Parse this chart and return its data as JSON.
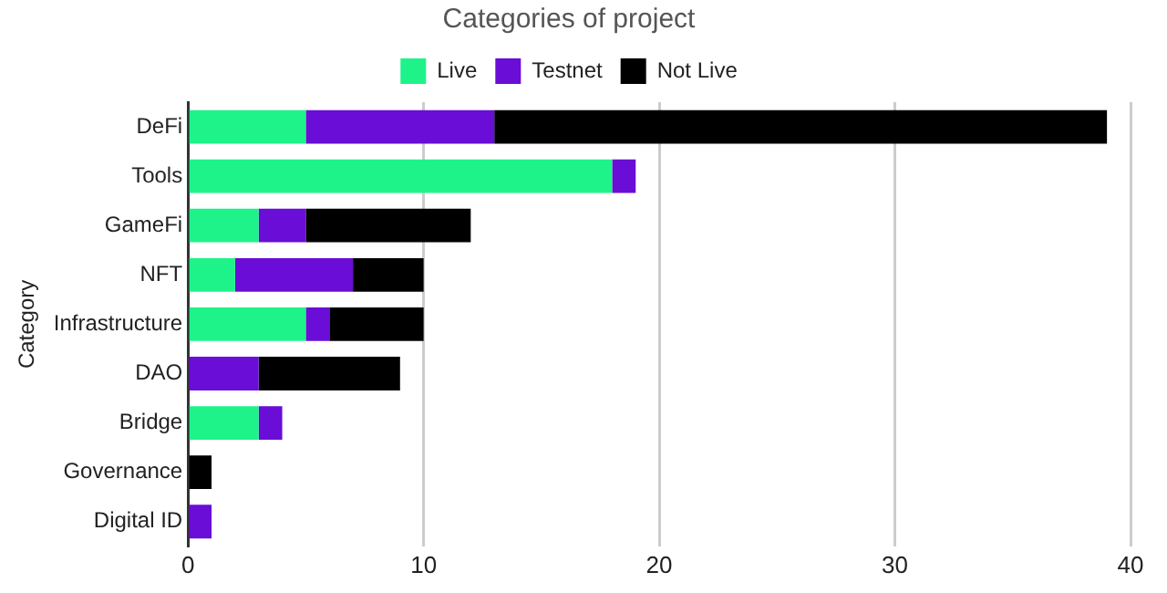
{
  "chart_data": {
    "type": "bar",
    "orientation": "horizontal",
    "stacked": true,
    "title": "Categories of project",
    "ylabel": "Category",
    "categories": [
      "DeFi",
      "Tools",
      "GameFi",
      "NFT",
      "Infrastructure",
      "DAO",
      "Bridge",
      "Governance",
      "Digital ID"
    ],
    "series": [
      {
        "name": "Live",
        "color": "#1ef38a",
        "values": [
          5,
          18,
          3,
          2,
          5,
          0,
          3,
          0,
          0
        ]
      },
      {
        "name": "Testnet",
        "color": "#6a0dd6",
        "values": [
          8,
          1,
          2,
          5,
          1,
          3,
          1,
          0,
          1
        ]
      },
      {
        "name": "Not Live",
        "color": "#000000",
        "values": [
          26,
          0,
          7,
          3,
          4,
          6,
          0,
          1,
          0
        ]
      }
    ],
    "xlim": [
      0,
      40
    ],
    "xticks": [
      0,
      10,
      20,
      30,
      40
    ],
    "grid": "x",
    "legend": "top"
  }
}
